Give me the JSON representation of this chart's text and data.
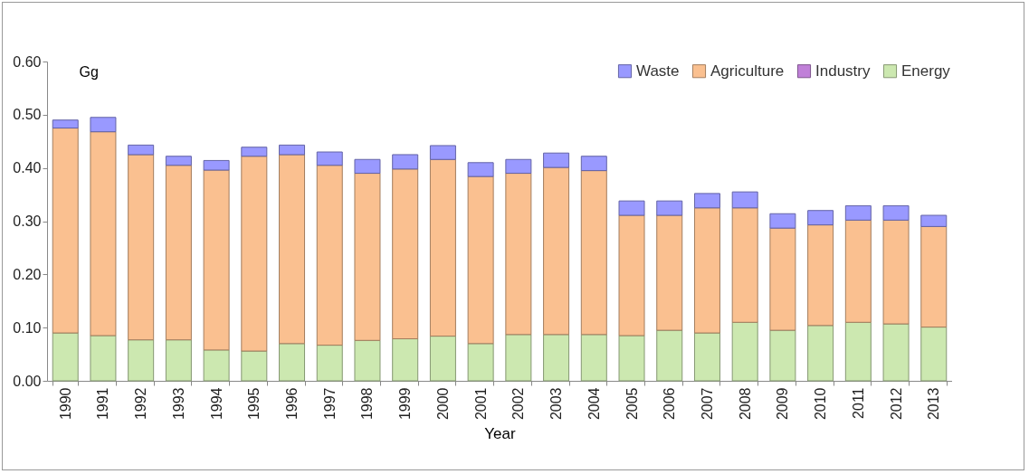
{
  "chart_data": {
    "type": "bar",
    "stacked": true,
    "xlabel": "Year",
    "ylabel": "Gg",
    "categories": [
      "1990",
      "1991",
      "1992",
      "1993",
      "1994",
      "1995",
      "1996",
      "1997",
      "1998",
      "1999",
      "2000",
      "2001",
      "2002",
      "2003",
      "2004",
      "2005",
      "2006",
      "2007",
      "2008",
      "2009",
      "2010",
      "2011",
      "2012",
      "2013"
    ],
    "series": [
      {
        "name": "Energy",
        "color": "#cce8b0",
        "values": [
          0.09,
          0.085,
          0.077,
          0.077,
          0.058,
          0.056,
          0.07,
          0.067,
          0.076,
          0.079,
          0.084,
          0.07,
          0.087,
          0.087,
          0.087,
          0.085,
          0.095,
          0.09,
          0.11,
          0.095,
          0.104,
          0.11,
          0.107,
          0.101
        ]
      },
      {
        "name": "Industry",
        "color": "#c080d8",
        "values": [
          null,
          null,
          null,
          null,
          null,
          null,
          null,
          null,
          null,
          null,
          null,
          null,
          null,
          null,
          null,
          null,
          null,
          null,
          null,
          null,
          null,
          null,
          null,
          null
        ]
      },
      {
        "name": "Agriculture",
        "color": "#fac090",
        "values": [
          0.385,
          0.383,
          0.348,
          0.328,
          0.338,
          0.366,
          0.355,
          0.338,
          0.314,
          0.319,
          0.332,
          0.314,
          0.303,
          0.314,
          0.308,
          0.226,
          0.216,
          0.235,
          0.215,
          0.192,
          0.189,
          0.192,
          0.195,
          0.189
        ]
      },
      {
        "name": "Waste",
        "color": "#9999ff",
        "values": [
          0.015,
          0.027,
          0.018,
          0.017,
          0.018,
          0.017,
          0.018,
          0.025,
          0.026,
          0.027,
          0.026,
          0.026,
          0.026,
          0.027,
          0.027,
          0.027,
          0.027,
          0.027,
          0.03,
          0.027,
          0.027,
          0.027,
          0.027,
          0.021
        ]
      }
    ],
    "ylim": [
      0,
      0.6
    ],
    "yticks": [
      {
        "value": 0,
        "label": "0.00"
      },
      {
        "value": 0.1,
        "label": "0.10"
      },
      {
        "value": 0.2,
        "label": "0.20"
      },
      {
        "value": 0.3,
        "label": "0.30"
      },
      {
        "value": 0.4,
        "label": "0.40"
      },
      {
        "value": 0.5,
        "label": "0.50"
      },
      {
        "value": 0.6,
        "label": "0.60"
      }
    ],
    "grid": false,
    "legend": "top right"
  }
}
